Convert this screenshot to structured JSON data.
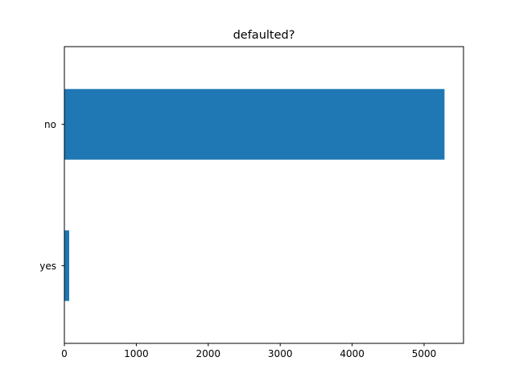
{
  "chart_data": {
    "type": "bar",
    "orientation": "horizontal",
    "title": "defaulted?",
    "xlabel": "",
    "ylabel": "",
    "categories": [
      "no",
      "yes"
    ],
    "values": [
      5284,
      67
    ],
    "xlim": [
      0,
      5548
    ],
    "xticks": [
      0,
      1000,
      2000,
      3000,
      4000,
      5000
    ],
    "bar_color": "#1f77b4",
    "grid": false,
    "legend": "none"
  }
}
